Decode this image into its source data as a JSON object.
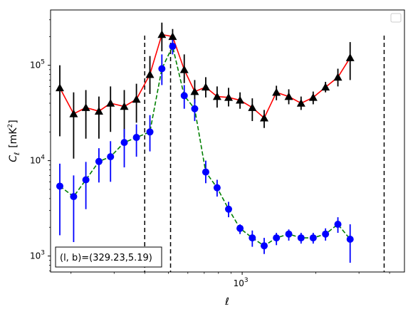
{
  "chart_data": {
    "type": "line",
    "title": "",
    "xlabel": "ℓ",
    "ylabel_main": "C",
    "ylabel_sub": "ℓ",
    "ylabel_unit": "[mK",
    "ylabel_unit_sup": "2",
    "ylabel_unit_end": "]",
    "x_scale": "log",
    "y_scale": "log",
    "xlim": [
      165,
      4600
    ],
    "ylim": [
      680,
      380000
    ],
    "x_tick_labels": [
      {
        "value": 1000,
        "base": "10",
        "exp": "3"
      }
    ],
    "y_tick_labels": [
      {
        "value": 1000,
        "base": "10",
        "exp": "3"
      },
      {
        "value": 10000,
        "base": "10",
        "exp": "4"
      },
      {
        "value": 100000,
        "base": "10",
        "exp": "5"
      }
    ],
    "annotation": "(l, b)=(329.23,5.19)",
    "legend_position": "top-right",
    "vlines": [
      400,
      510,
      3800
    ],
    "x": [
      180,
      205,
      230,
      260,
      290,
      330,
      370,
      420,
      470,
      520,
      580,
      640,
      710,
      780,
      860,
      960,
      1050,
      1150,
      1280,
      1410,
      1560,
      1740,
      1920,
      2130,
      2370,
      2620,
      2900,
      3200,
      3550,
      3950,
      4350
    ],
    "series": [
      {
        "color": "#ff0000",
        "marker": "triangle",
        "marker_color": "#000000",
        "linestyle": "solid",
        "values": [
          58000,
          31000,
          36000,
          33000,
          40000,
          37000,
          44000,
          80000,
          210000,
          200000,
          90000,
          53000,
          59000,
          47000,
          46000,
          43000,
          36000,
          28000,
          52000,
          47000,
          40000,
          46000,
          59000,
          75000,
          120000
        ],
        "x_index": [
          0,
          1,
          2,
          3,
          4,
          5,
          6,
          7,
          8,
          9,
          10,
          11,
          12,
          13,
          14,
          15,
          16,
          17,
          18,
          19,
          20,
          21,
          22,
          23,
          24
        ],
        "x": [
          180,
          205,
          230,
          260,
          290,
          330,
          370,
          420,
          470,
          520,
          580,
          640,
          710,
          790,
          880,
          980,
          1100,
          1230,
          1380,
          1550,
          1740,
          1950,
          2190,
          2460,
          2760
        ],
        "err_low": [
          18000,
          10500,
          17000,
          17000,
          20000,
          17500,
          25000,
          50000,
          140000,
          160000,
          65000,
          40000,
          46000,
          36000,
          37000,
          35000,
          26000,
          22000,
          43000,
          39000,
          34000,
          39000,
          52000,
          60000,
          70000
        ],
        "err_high": [
          100000,
          52000,
          55000,
          47000,
          60000,
          55000,
          64000,
          125000,
          280000,
          240000,
          130000,
          70000,
          75000,
          60000,
          58000,
          52000,
          45000,
          34000,
          61000,
          56000,
          47000,
          53000,
          67000,
          92000,
          175000
        ]
      },
      {
        "color": "#008000",
        "marker": "circle",
        "marker_color": "#0000ff",
        "linestyle": "dashed",
        "values": [
          5400,
          4200,
          6300,
          9800,
          11000,
          15500,
          17500,
          20000,
          92000,
          158000,
          48000,
          35000,
          7600,
          5200,
          3100,
          1950,
          1550,
          1280,
          1550,
          1700,
          1550,
          1550,
          1700,
          2150,
          1500
        ],
        "x": [
          180,
          205,
          230,
          260,
          290,
          330,
          370,
          420,
          470,
          520,
          580,
          640,
          710,
          790,
          880,
          980,
          1100,
          1230,
          1380,
          1550,
          1740,
          1950,
          2190,
          2460,
          2760
        ],
        "err_low": [
          1650,
          1400,
          3100,
          5900,
          6000,
          8500,
          11000,
          12500,
          62000,
          130000,
          35000,
          26000,
          5800,
          4200,
          2550,
          1700,
          1250,
          1050,
          1300,
          1450,
          1350,
          1350,
          1450,
          1750,
          850
        ],
        "err_high": [
          9300,
          7000,
          9700,
          13500,
          16000,
          21500,
          24000,
          30000,
          130000,
          185000,
          62000,
          44000,
          10000,
          6300,
          3700,
          2150,
          1850,
          1550,
          1750,
          1900,
          1750,
          1750,
          1950,
          2550,
          2150
        ]
      }
    ]
  }
}
